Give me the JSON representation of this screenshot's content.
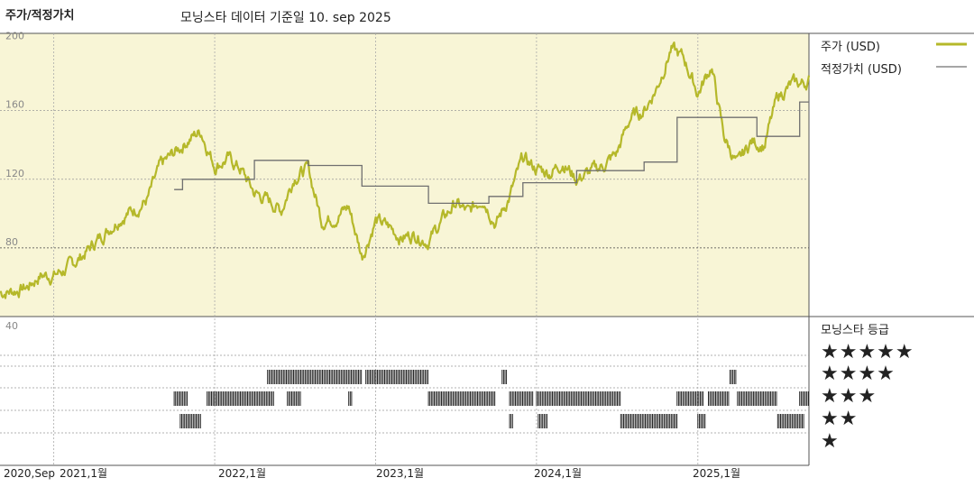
{
  "header": {
    "chart_title": "주가/적정가치",
    "date_note": "모닝스타 데이터 기준일 10. sep 2025"
  },
  "legend": {
    "price_label": "주가 (USD)",
    "fair_label": "적정가치 (USD)",
    "price_color": "#b5b82a",
    "fair_color": "#707070"
  },
  "rating_section": {
    "title": "모닝스타 등급",
    "stars": [
      "★★★★★",
      "★★★★",
      "★★★",
      "★★",
      "★"
    ]
  },
  "x_ticks": [
    "2020,Sep",
    "2021,1월",
    "2022,1월",
    "2023,1월",
    "2024,1월",
    "2025,1월"
  ],
  "y_ticks_price": [
    "200",
    "160",
    "120",
    "80"
  ],
  "y_tick_rating_top": "40",
  "chart_data": {
    "type": "line",
    "x_start": "2020-09-01",
    "x_end": "2025-09-10",
    "ylim": [
      40,
      205
    ],
    "series": [
      {
        "name": "주가 (USD)",
        "points": [
          [
            "2020-09-01",
            54
          ],
          [
            "2020-10-01",
            55
          ],
          [
            "2020-11-01",
            57
          ],
          [
            "2020-12-01",
            64
          ],
          [
            "2021-01-01",
            64
          ],
          [
            "2021-02-01",
            68
          ],
          [
            "2021-03-01",
            74
          ],
          [
            "2021-04-01",
            82
          ],
          [
            "2021-05-01",
            90
          ],
          [
            "2021-06-01",
            98
          ],
          [
            "2021-07-01",
            102
          ],
          [
            "2021-08-01",
            108
          ],
          [
            "2021-09-01",
            128
          ],
          [
            "2021-10-01",
            135
          ],
          [
            "2021-11-01",
            143
          ],
          [
            "2021-12-01",
            148
          ],
          [
            "2022-01-01",
            128
          ],
          [
            "2022-02-01",
            132
          ],
          [
            "2022-03-01",
            126
          ],
          [
            "2022-04-01",
            112
          ],
          [
            "2022-05-01",
            108
          ],
          [
            "2022-06-01",
            102
          ],
          [
            "2022-07-01",
            122
          ],
          [
            "2022-08-01",
            126
          ],
          [
            "2022-09-01",
            96
          ],
          [
            "2022-10-01",
            98
          ],
          [
            "2022-11-01",
            104
          ],
          [
            "2022-12-01",
            75
          ],
          [
            "2023-01-01",
            96
          ],
          [
            "2023-02-01",
            92
          ],
          [
            "2023-03-01",
            86
          ],
          [
            "2023-04-01",
            88
          ],
          [
            "2023-05-01",
            84
          ],
          [
            "2023-06-01",
            96
          ],
          [
            "2023-07-01",
            106
          ],
          [
            "2023-08-01",
            100
          ],
          [
            "2023-09-01",
            110
          ],
          [
            "2023-10-01",
            94
          ],
          [
            "2023-11-01",
            110
          ],
          [
            "2023-12-01",
            132
          ],
          [
            "2024-01-01",
            126
          ],
          [
            "2024-02-01",
            124
          ],
          [
            "2024-03-01",
            130
          ],
          [
            "2024-04-01",
            120
          ],
          [
            "2024-05-01",
            124
          ],
          [
            "2024-06-01",
            128
          ],
          [
            "2024-07-01",
            135
          ],
          [
            "2024-08-01",
            156
          ],
          [
            "2024-09-01",
            160
          ],
          [
            "2024-10-01",
            174
          ],
          [
            "2024-11-01",
            196
          ],
          [
            "2024-12-01",
            190
          ],
          [
            "2025-01-01",
            170
          ],
          [
            "2025-02-01",
            186
          ],
          [
            "2025-03-01",
            145
          ],
          [
            "2025-04-01",
            128
          ],
          [
            "2025-05-01",
            142
          ],
          [
            "2025-06-01",
            140
          ],
          [
            "2025-07-01",
            168
          ],
          [
            "2025-08-01",
            175
          ],
          [
            "2025-09-01",
            176
          ],
          [
            "2025-09-10",
            178
          ]
        ]
      },
      {
        "name": "적정가치 (USD)",
        "points": [
          [
            "2021-10-01",
            114
          ],
          [
            "2021-10-20",
            114
          ],
          [
            "2021-10-20",
            120
          ],
          [
            "2022-04-01",
            120
          ],
          [
            "2022-04-01",
            131
          ],
          [
            "2022-08-01",
            131
          ],
          [
            "2022-08-01",
            128
          ],
          [
            "2022-12-01",
            128
          ],
          [
            "2022-12-01",
            116
          ],
          [
            "2023-05-01",
            116
          ],
          [
            "2023-05-01",
            106
          ],
          [
            "2023-09-15",
            106
          ],
          [
            "2023-09-15",
            110
          ],
          [
            "2023-12-01",
            110
          ],
          [
            "2023-12-01",
            118
          ],
          [
            "2024-04-01",
            118
          ],
          [
            "2024-04-01",
            125
          ],
          [
            "2024-09-01",
            125
          ],
          [
            "2024-09-01",
            130
          ],
          [
            "2024-11-15",
            130
          ],
          [
            "2024-11-15",
            156
          ],
          [
            "2025-05-15",
            156
          ],
          [
            "2025-05-15",
            145
          ],
          [
            "2025-08-20",
            145
          ],
          [
            "2025-08-20",
            165
          ],
          [
            "2025-09-10",
            165
          ]
        ]
      }
    ],
    "gridlines_y": [
      160,
      120,
      80
    ],
    "ratings": [
      {
        "stars": 4,
        "start": "2022-05-01",
        "end": "2022-12-01"
      },
      {
        "stars": 4,
        "start": "2022-12-10",
        "end": "2023-05-01"
      },
      {
        "stars": 4,
        "start": "2023-10-15",
        "end": "2023-10-25"
      },
      {
        "stars": 4,
        "start": "2025-03-15",
        "end": "2025-03-30"
      },
      {
        "stars": 3,
        "start": "2021-10-01",
        "end": "2021-11-01"
      },
      {
        "stars": 3,
        "start": "2021-12-15",
        "end": "2022-05-15"
      },
      {
        "stars": 3,
        "start": "2022-06-15",
        "end": "2022-07-15"
      },
      {
        "stars": 3,
        "start": "2022-11-01",
        "end": "2022-11-10"
      },
      {
        "stars": 3,
        "start": "2023-05-01",
        "end": "2023-10-01"
      },
      {
        "stars": 3,
        "start": "2023-11-01",
        "end": "2023-12-25"
      },
      {
        "stars": 3,
        "start": "2024-01-01",
        "end": "2024-07-10"
      },
      {
        "stars": 3,
        "start": "2024-11-15",
        "end": "2025-01-15"
      },
      {
        "stars": 3,
        "start": "2025-01-25",
        "end": "2025-03-15"
      },
      {
        "stars": 3,
        "start": "2025-04-01",
        "end": "2025-07-01"
      },
      {
        "stars": 3,
        "start": "2025-08-20",
        "end": "2025-09-10"
      },
      {
        "stars": 2,
        "start": "2021-10-15",
        "end": "2021-12-01"
      },
      {
        "stars": 2,
        "start": "2023-11-01",
        "end": "2023-11-10"
      },
      {
        "stars": 2,
        "start": "2024-01-05",
        "end": "2024-01-25"
      },
      {
        "stars": 2,
        "start": "2024-07-10",
        "end": "2024-11-15"
      },
      {
        "stars": 2,
        "start": "2025-01-01",
        "end": "2025-01-20"
      },
      {
        "stars": 2,
        "start": "2025-07-01",
        "end": "2025-09-01"
      }
    ]
  }
}
